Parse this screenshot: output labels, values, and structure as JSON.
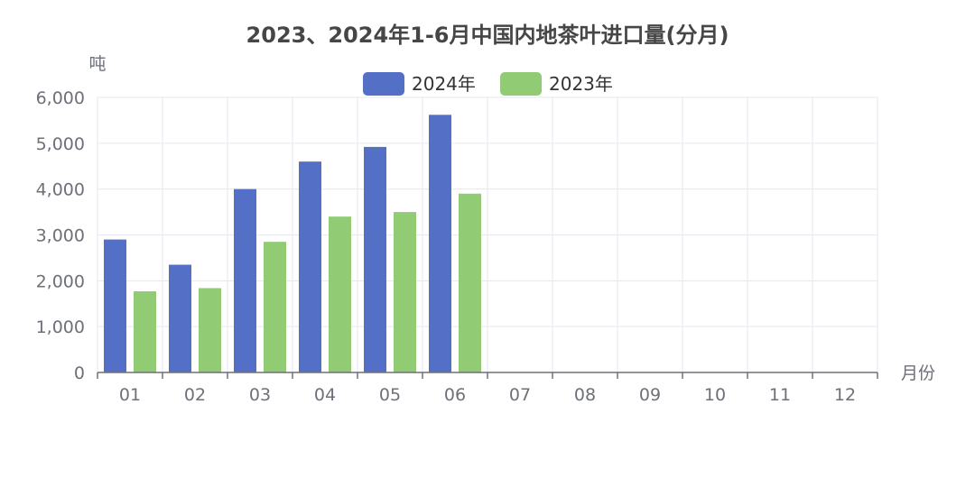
{
  "chart_data": {
    "type": "bar",
    "title": "2023、2024年1-6月中国内地茶叶进口量(分月)",
    "ylabel": "吨",
    "xlabel": "月份",
    "ylim": [
      0,
      6000
    ],
    "yticks": [
      "0",
      "1,000",
      "2,000",
      "3,000",
      "4,000",
      "5,000",
      "6,000"
    ],
    "categories": [
      "01",
      "02",
      "03",
      "04",
      "05",
      "06",
      "07",
      "08",
      "09",
      "10",
      "11",
      "12"
    ],
    "legend_position": "top-center",
    "grid": true,
    "series": [
      {
        "name": "2024年",
        "color": "#5470c6",
        "values": [
          2900,
          2350,
          4000,
          4600,
          4920,
          5620,
          null,
          null,
          null,
          null,
          null,
          null
        ]
      },
      {
        "name": "2023年",
        "color": "#91cc75",
        "values": [
          1770,
          1840,
          2850,
          3400,
          3500,
          3900,
          null,
          null,
          null,
          null,
          null,
          null
        ]
      }
    ]
  }
}
